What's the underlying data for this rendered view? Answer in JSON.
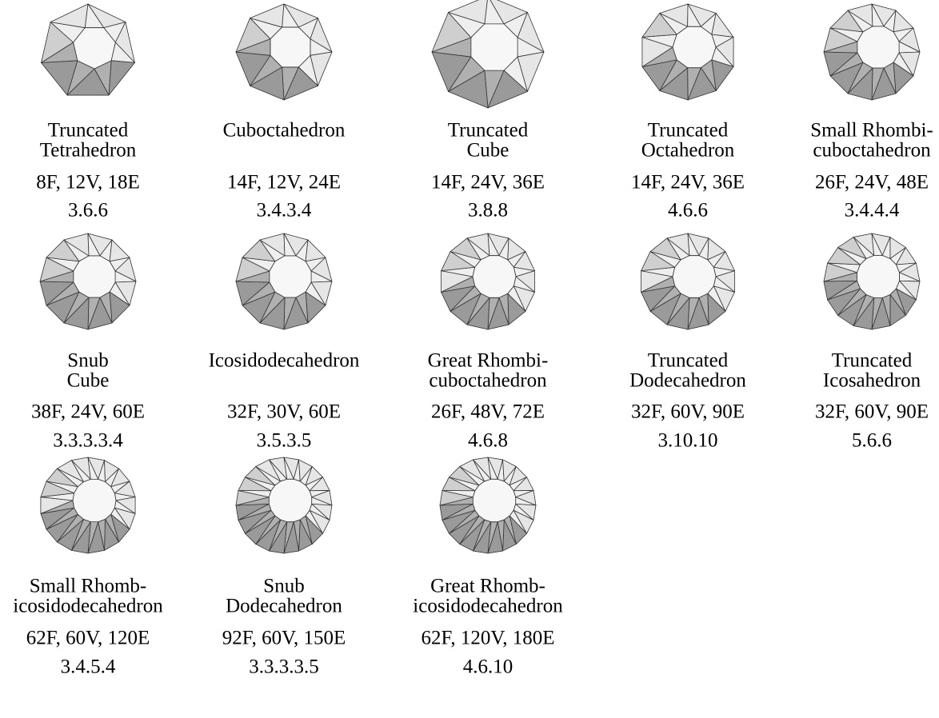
{
  "solids": [
    {
      "name": [
        "Truncated",
        "Tetrahedron"
      ],
      "counts": "8F, 12V, 18E",
      "vertex_configuration": "3.6.6"
    },
    {
      "name": [
        "Cuboctahedron"
      ],
      "counts": "14F, 12V, 24E",
      "vertex_configuration": "3.4.3.4"
    },
    {
      "name": [
        "Truncated",
        "Cube"
      ],
      "counts": "14F, 24V, 36E",
      "vertex_configuration": "3.8.8"
    },
    {
      "name": [
        "Truncated",
        "Octahedron"
      ],
      "counts": "14F, 24V, 36E",
      "vertex_configuration": "4.6.6"
    },
    {
      "name": [
        "Small Rhombi-",
        "cuboctahedron"
      ],
      "counts": "26F, 24V, 48E",
      "vertex_configuration": "3.4.4.4"
    },
    {
      "name": [
        "Snub",
        "Cube"
      ],
      "counts": "38F, 24V, 60E",
      "vertex_configuration": "3.3.3.3.4"
    },
    {
      "name": [
        "Icosidodecahedron"
      ],
      "counts": "32F, 30V, 60E",
      "vertex_configuration": "3.5.3.5"
    },
    {
      "name": [
        "Great Rhombi-",
        "cuboctahedron"
      ],
      "counts": "26F, 48V, 72E",
      "vertex_configuration": "4.6.8"
    },
    {
      "name": [
        "Truncated",
        "Dodecahedron"
      ],
      "counts": "32F, 60V, 90E",
      "vertex_configuration": "3.10.10"
    },
    {
      "name": [
        "Truncated",
        "Icosahedron"
      ],
      "counts": "32F, 60V, 90E",
      "vertex_configuration": "5.6.6"
    },
    {
      "name": [
        "Small Rhomb-",
        "icosidodecahedron"
      ],
      "counts": "62F, 60V, 120E",
      "vertex_configuration": "3.4.5.4"
    },
    {
      "name": [
        "Snub",
        "Dodecahedron"
      ],
      "counts": "92F, 60V, 150E",
      "vertex_configuration": "3.3.3.3.5"
    },
    {
      "name": [
        "Great Rhomb-",
        "icosidodecahedron"
      ],
      "counts": "62F, 120V, 180E",
      "vertex_configuration": "4.6.10"
    }
  ]
}
